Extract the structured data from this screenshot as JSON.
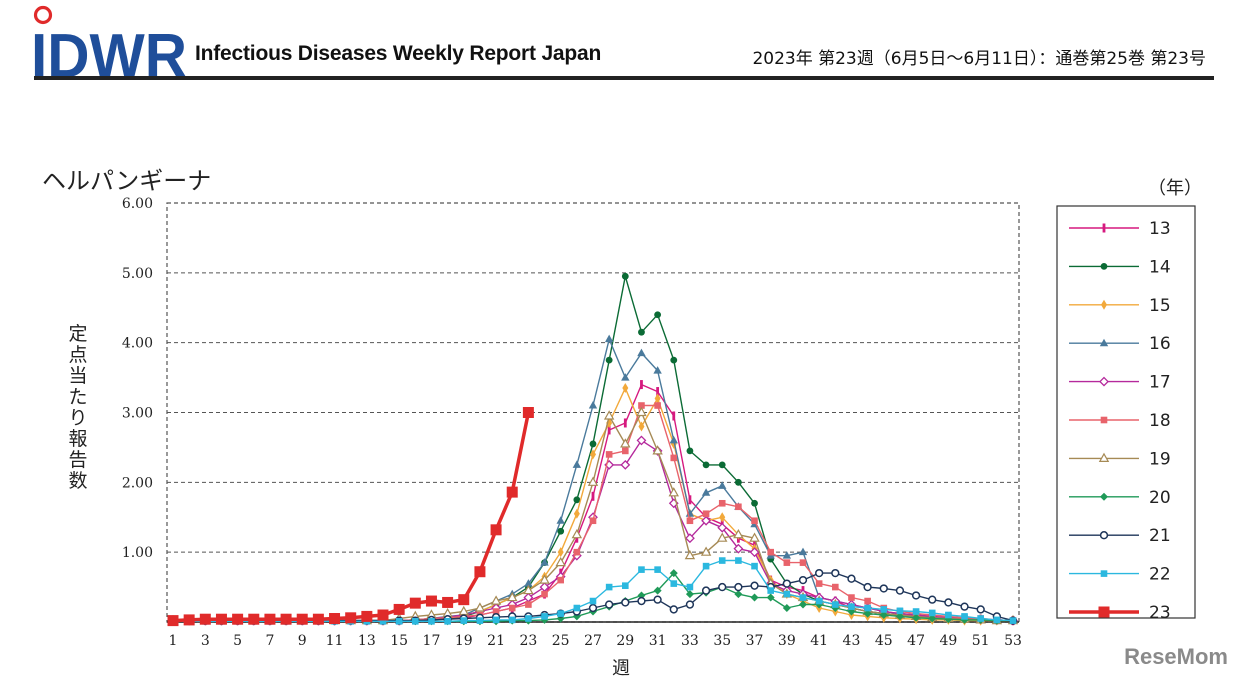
{
  "header": {
    "logo_text": "IDWR",
    "report_name": "Infectious Diseases Weekly Report Japan",
    "issue_info": "2023年 第23週（6月5日～6月11日）：通巻第25巻 第23号"
  },
  "watermark": "ReseMom",
  "colors": {
    "logo_blue": "#1f4e9a",
    "logo_red": "#e02a2a",
    "rule": "#222222"
  },
  "chart_data": {
    "type": "line",
    "title": "ヘルパンギーナ",
    "xlabel": "週",
    "ylabel": "定点当たり報告数",
    "legend_title": "（年）",
    "legend_position": "right",
    "xlim": [
      1,
      53
    ],
    "ylim": [
      0,
      6
    ],
    "x_ticks": [
      "1",
      "3",
      "5",
      "7",
      "9",
      "11",
      "13",
      "15",
      "17",
      "19",
      "21",
      "23",
      "25",
      "27",
      "29",
      "31",
      "33",
      "35",
      "37",
      "39",
      "41",
      "43",
      "45",
      "47",
      "49",
      "51",
      "53"
    ],
    "y_ticks": [
      "1.00",
      "2.00",
      "3.00",
      "4.00",
      "5.00",
      "6.00"
    ],
    "series": [
      {
        "name": "13",
        "color": "#d6197f",
        "marker": "bar",
        "weeks": [
          1,
          2,
          3,
          4,
          5,
          6,
          7,
          8,
          9,
          10,
          11,
          12,
          13,
          14,
          15,
          16,
          17,
          18,
          19,
          20,
          21,
          22,
          23,
          24,
          25,
          26,
          27,
          28,
          29,
          30,
          31,
          32,
          33,
          34,
          35,
          36,
          37,
          38,
          39,
          40,
          41,
          42,
          43,
          44,
          45,
          46,
          47,
          48,
          49,
          50,
          51,
          52,
          53
        ],
        "values": [
          0.02,
          0.02,
          0.02,
          0.02,
          0.02,
          0.02,
          0.02,
          0.02,
          0.02,
          0.02,
          0.02,
          0.02,
          0.02,
          0.02,
          0.02,
          0.03,
          0.04,
          0.05,
          0.06,
          0.1,
          0.15,
          0.2,
          0.3,
          0.4,
          0.7,
          1.2,
          1.8,
          2.75,
          2.85,
          3.4,
          3.3,
          2.95,
          1.75,
          1.5,
          1.4,
          1.2,
          1.1,
          0.6,
          0.5,
          0.45,
          0.35,
          0.3,
          0.2,
          0.15,
          0.12,
          0.1,
          0.08,
          0.07,
          0.06,
          0.05,
          0.04,
          0.03,
          0.02
        ]
      },
      {
        "name": "14",
        "color": "#0b6b35",
        "marker": "dot",
        "weeks": [
          1,
          2,
          3,
          4,
          5,
          6,
          7,
          8,
          9,
          10,
          11,
          12,
          13,
          14,
          15,
          16,
          17,
          18,
          19,
          20,
          21,
          22,
          23,
          24,
          25,
          26,
          27,
          28,
          29,
          30,
          31,
          32,
          33,
          34,
          35,
          36,
          37,
          38,
          39,
          40,
          41,
          42,
          43,
          44,
          45,
          46,
          47,
          48,
          49,
          50,
          51,
          52,
          53
        ],
        "values": [
          0.02,
          0.02,
          0.02,
          0.02,
          0.02,
          0.02,
          0.02,
          0.02,
          0.02,
          0.02,
          0.02,
          0.02,
          0.02,
          0.02,
          0.02,
          0.02,
          0.03,
          0.05,
          0.08,
          0.15,
          0.25,
          0.35,
          0.5,
          0.85,
          1.3,
          1.75,
          2.55,
          3.75,
          4.95,
          4.15,
          4.4,
          3.75,
          2.45,
          2.25,
          2.25,
          2.0,
          1.7,
          0.9,
          0.55,
          0.4,
          0.3,
          0.25,
          0.2,
          0.15,
          0.12,
          0.1,
          0.08,
          0.07,
          0.06,
          0.05,
          0.04,
          0.03,
          0.02
        ]
      },
      {
        "name": "15",
        "color": "#f2a93b",
        "marker": "diamond",
        "weeks": [
          1,
          2,
          3,
          4,
          5,
          6,
          7,
          8,
          9,
          10,
          11,
          12,
          13,
          14,
          15,
          16,
          17,
          18,
          19,
          20,
          21,
          22,
          23,
          24,
          25,
          26,
          27,
          28,
          29,
          30,
          31,
          32,
          33,
          34,
          35,
          36,
          37,
          38,
          39,
          40,
          41,
          42,
          43,
          44,
          45,
          46,
          47,
          48,
          49,
          50,
          51,
          52,
          53
        ],
        "values": [
          0.02,
          0.02,
          0.02,
          0.02,
          0.02,
          0.02,
          0.02,
          0.02,
          0.02,
          0.02,
          0.02,
          0.02,
          0.02,
          0.02,
          0.02,
          0.03,
          0.05,
          0.07,
          0.1,
          0.15,
          0.25,
          0.35,
          0.45,
          0.65,
          1.0,
          1.55,
          2.4,
          2.85,
          3.35,
          2.8,
          3.2,
          2.55,
          1.55,
          1.45,
          1.5,
          1.25,
          1.05,
          0.6,
          0.4,
          0.3,
          0.2,
          0.15,
          0.1,
          0.08,
          0.06,
          0.05,
          0.04,
          0.03,
          0.03,
          0.02,
          0.02,
          0.02,
          0.02
        ]
      },
      {
        "name": "16",
        "color": "#4a7a9c",
        "marker": "triangle",
        "weeks": [
          1,
          2,
          3,
          4,
          5,
          6,
          7,
          8,
          9,
          10,
          11,
          12,
          13,
          14,
          15,
          16,
          17,
          18,
          19,
          20,
          21,
          22,
          23,
          24,
          25,
          26,
          27,
          28,
          29,
          30,
          31,
          32,
          33,
          34,
          35,
          36,
          37,
          38,
          39,
          40,
          41,
          42,
          43,
          44,
          45,
          46,
          47,
          48,
          49,
          50,
          51,
          52,
          53
        ],
        "values": [
          0.02,
          0.02,
          0.02,
          0.02,
          0.02,
          0.02,
          0.02,
          0.02,
          0.02,
          0.02,
          0.02,
          0.02,
          0.02,
          0.02,
          0.02,
          0.03,
          0.05,
          0.08,
          0.1,
          0.2,
          0.3,
          0.4,
          0.55,
          0.85,
          1.45,
          2.25,
          3.1,
          4.05,
          3.5,
          3.85,
          3.6,
          2.6,
          1.55,
          1.85,
          1.95,
          1.65,
          1.4,
          0.95,
          0.95,
          1.0,
          0.35,
          0.3,
          0.25,
          0.2,
          0.15,
          0.12,
          0.1,
          0.08,
          0.06,
          0.05,
          0.04,
          0.03,
          0.02
        ]
      },
      {
        "name": "17",
        "color": "#b5299c",
        "marker": "open-diamond",
        "weeks": [
          1,
          2,
          3,
          4,
          5,
          6,
          7,
          8,
          9,
          10,
          11,
          12,
          13,
          14,
          15,
          16,
          17,
          18,
          19,
          20,
          21,
          22,
          23,
          24,
          25,
          26,
          27,
          28,
          29,
          30,
          31,
          32,
          33,
          34,
          35,
          36,
          37,
          38,
          39,
          40,
          41,
          42,
          43,
          44,
          45,
          46,
          47,
          48,
          49,
          50,
          51,
          52,
          53
        ],
        "values": [
          0.02,
          0.02,
          0.02,
          0.02,
          0.02,
          0.02,
          0.02,
          0.02,
          0.02,
          0.02,
          0.02,
          0.02,
          0.02,
          0.02,
          0.02,
          0.03,
          0.05,
          0.07,
          0.1,
          0.15,
          0.2,
          0.25,
          0.35,
          0.5,
          0.65,
          0.95,
          1.5,
          2.25,
          2.25,
          2.6,
          2.45,
          1.7,
          1.2,
          1.45,
          1.35,
          1.05,
          1.0,
          0.55,
          0.45,
          0.4,
          0.35,
          0.3,
          0.25,
          0.2,
          0.15,
          0.12,
          0.1,
          0.08,
          0.06,
          0.05,
          0.04,
          0.03,
          0.02
        ]
      },
      {
        "name": "18",
        "color": "#e8636b",
        "marker": "square",
        "weeks": [
          1,
          2,
          3,
          4,
          5,
          6,
          7,
          8,
          9,
          10,
          11,
          12,
          13,
          14,
          15,
          16,
          17,
          18,
          19,
          20,
          21,
          22,
          23,
          24,
          25,
          26,
          27,
          28,
          29,
          30,
          31,
          32,
          33,
          34,
          35,
          36,
          37,
          38,
          39,
          40,
          41,
          42,
          43,
          44,
          45,
          46,
          47,
          48,
          49,
          50,
          51,
          52,
          53
        ],
        "values": [
          0.02,
          0.02,
          0.02,
          0.02,
          0.02,
          0.02,
          0.02,
          0.02,
          0.02,
          0.02,
          0.02,
          0.02,
          0.02,
          0.02,
          0.02,
          0.03,
          0.05,
          0.06,
          0.08,
          0.1,
          0.15,
          0.2,
          0.25,
          0.4,
          0.6,
          1.0,
          1.45,
          2.4,
          2.45,
          3.1,
          3.1,
          2.35,
          1.45,
          1.55,
          1.7,
          1.65,
          1.45,
          1.0,
          0.85,
          0.85,
          0.55,
          0.5,
          0.35,
          0.3,
          0.2,
          0.15,
          0.12,
          0.1,
          0.08,
          0.06,
          0.05,
          0.03,
          0.02
        ]
      },
      {
        "name": "19",
        "color": "#a68a55",
        "marker": "open-triangle",
        "weeks": [
          1,
          2,
          3,
          4,
          5,
          6,
          7,
          8,
          9,
          10,
          11,
          12,
          13,
          14,
          15,
          16,
          17,
          18,
          19,
          20,
          21,
          22,
          23,
          24,
          25,
          26,
          27,
          28,
          29,
          30,
          31,
          32,
          33,
          34,
          35,
          36,
          37,
          38,
          39,
          40,
          41,
          42,
          43,
          44,
          45,
          46,
          47,
          48,
          49,
          50,
          51,
          52,
          53
        ],
        "values": [
          0.02,
          0.02,
          0.02,
          0.02,
          0.02,
          0.02,
          0.02,
          0.02,
          0.02,
          0.02,
          0.02,
          0.02,
          0.02,
          0.02,
          0.05,
          0.08,
          0.1,
          0.12,
          0.15,
          0.2,
          0.3,
          0.35,
          0.45,
          0.6,
          0.85,
          1.25,
          2.0,
          2.95,
          2.55,
          3.0,
          2.45,
          1.85,
          0.95,
          1.0,
          1.2,
          1.25,
          1.2,
          0.55,
          0.4,
          0.35,
          0.3,
          0.25,
          0.2,
          0.15,
          0.12,
          0.1,
          0.08,
          0.06,
          0.05,
          0.04,
          0.03,
          0.02,
          0.02
        ]
      },
      {
        "name": "20",
        "color": "#1f9a58",
        "marker": "filled-diamond",
        "weeks": [
          1,
          2,
          3,
          4,
          5,
          6,
          7,
          8,
          9,
          10,
          11,
          12,
          13,
          14,
          15,
          16,
          17,
          18,
          19,
          20,
          21,
          22,
          23,
          24,
          25,
          26,
          27,
          28,
          29,
          30,
          31,
          32,
          33,
          34,
          35,
          36,
          37,
          38,
          39,
          40,
          41,
          42,
          43,
          44,
          45,
          46,
          47,
          48,
          49,
          50,
          51,
          52,
          53
        ],
        "values": [
          0.01,
          0.01,
          0.01,
          0.01,
          0.01,
          0.01,
          0.01,
          0.01,
          0.01,
          0.01,
          0.01,
          0.01,
          0.01,
          0.01,
          0.01,
          0.01,
          0.01,
          0.01,
          0.01,
          0.01,
          0.01,
          0.02,
          0.02,
          0.03,
          0.05,
          0.08,
          0.15,
          0.22,
          0.3,
          0.38,
          0.45,
          0.7,
          0.4,
          0.42,
          0.5,
          0.4,
          0.35,
          0.35,
          0.2,
          0.25,
          0.25,
          0.2,
          0.15,
          0.12,
          0.1,
          0.08,
          0.06,
          0.05,
          0.04,
          0.03,
          0.03,
          0.02,
          0.02
        ]
      },
      {
        "name": "21",
        "color": "#1e3559",
        "marker": "open-circle",
        "weeks": [
          1,
          2,
          3,
          4,
          5,
          6,
          7,
          8,
          9,
          10,
          11,
          12,
          13,
          14,
          15,
          16,
          17,
          18,
          19,
          20,
          21,
          22,
          23,
          24,
          25,
          26,
          27,
          28,
          29,
          30,
          31,
          32,
          33,
          34,
          35,
          36,
          37,
          38,
          39,
          40,
          41,
          42,
          43,
          44,
          45,
          46,
          47,
          48,
          49,
          50,
          51,
          52,
          53
        ],
        "values": [
          0.02,
          0.02,
          0.02,
          0.02,
          0.02,
          0.02,
          0.02,
          0.02,
          0.02,
          0.02,
          0.02,
          0.02,
          0.02,
          0.02,
          0.02,
          0.02,
          0.03,
          0.04,
          0.05,
          0.06,
          0.07,
          0.08,
          0.08,
          0.1,
          0.12,
          0.15,
          0.2,
          0.25,
          0.28,
          0.3,
          0.32,
          0.18,
          0.25,
          0.45,
          0.5,
          0.5,
          0.52,
          0.5,
          0.55,
          0.6,
          0.7,
          0.7,
          0.62,
          0.5,
          0.48,
          0.45,
          0.38,
          0.32,
          0.28,
          0.22,
          0.18,
          0.08,
          0.02
        ]
      },
      {
        "name": "22",
        "color": "#2bb8df",
        "marker": "square",
        "weeks": [
          1,
          2,
          3,
          4,
          5,
          6,
          7,
          8,
          9,
          10,
          11,
          12,
          13,
          14,
          15,
          16,
          17,
          18,
          19,
          20,
          21,
          22,
          23,
          24,
          25,
          26,
          27,
          28,
          29,
          30,
          31,
          32,
          33,
          34,
          35,
          36,
          37,
          38,
          39,
          40,
          41,
          42,
          43,
          44,
          45,
          46,
          47,
          48,
          49,
          50,
          51,
          52,
          53
        ],
        "values": [
          0.01,
          0.01,
          0.01,
          0.01,
          0.01,
          0.01,
          0.01,
          0.01,
          0.01,
          0.01,
          0.01,
          0.01,
          0.01,
          0.01,
          0.01,
          0.01,
          0.01,
          0.01,
          0.02,
          0.02,
          0.03,
          0.03,
          0.05,
          0.08,
          0.12,
          0.2,
          0.3,
          0.5,
          0.52,
          0.75,
          0.75,
          0.55,
          0.5,
          0.8,
          0.88,
          0.88,
          0.8,
          0.45,
          0.4,
          0.35,
          0.3,
          0.25,
          0.22,
          0.2,
          0.18,
          0.16,
          0.15,
          0.13,
          0.1,
          0.08,
          0.05,
          0.03,
          0.02
        ]
      },
      {
        "name": "23",
        "color": "#e02a2a",
        "marker": "big-square",
        "weeks": [
          1,
          2,
          3,
          4,
          5,
          6,
          7,
          8,
          9,
          10,
          11,
          12,
          13,
          14,
          15,
          16,
          17,
          18,
          19,
          20,
          21,
          22,
          23
        ],
        "values": [
          0.02,
          0.03,
          0.04,
          0.04,
          0.04,
          0.04,
          0.04,
          0.04,
          0.04,
          0.04,
          0.05,
          0.06,
          0.08,
          0.1,
          0.18,
          0.27,
          0.3,
          0.28,
          0.32,
          0.72,
          1.32,
          1.86,
          3.0
        ]
      }
    ]
  }
}
